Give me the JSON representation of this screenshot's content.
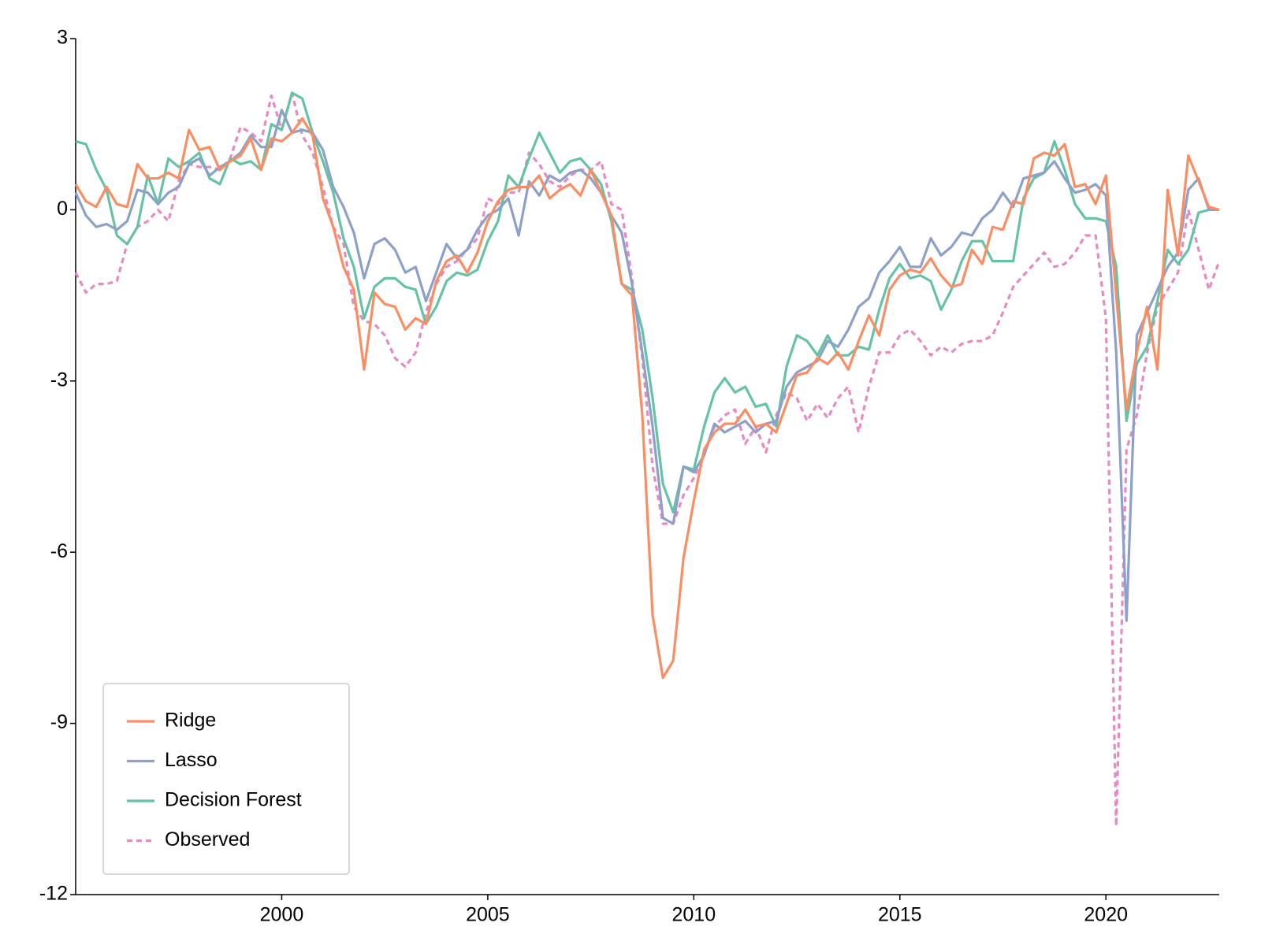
{
  "chart_data": {
    "type": "line",
    "x": [
      1995,
      1995.25,
      1995.5,
      1995.75,
      1996,
      1996.25,
      1996.5,
      1996.75,
      1997,
      1997.25,
      1997.5,
      1997.75,
      1998,
      1998.25,
      1998.5,
      1998.75,
      1999,
      1999.25,
      1999.5,
      1999.75,
      2000,
      2000.25,
      2000.5,
      2000.75,
      2001,
      2001.25,
      2001.5,
      2001.75,
      2002,
      2002.25,
      2002.5,
      2002.75,
      2003,
      2003.25,
      2003.5,
      2003.75,
      2004,
      2004.25,
      2004.5,
      2004.75,
      2005,
      2005.25,
      2005.5,
      2005.75,
      2006,
      2006.25,
      2006.5,
      2006.75,
      2007,
      2007.25,
      2007.5,
      2007.75,
      2008,
      2008.25,
      2008.5,
      2008.75,
      2009,
      2009.25,
      2009.5,
      2009.75,
      2010,
      2010.25,
      2010.5,
      2010.75,
      2011,
      2011.25,
      2011.5,
      2011.75,
      2012,
      2012.25,
      2012.5,
      2012.75,
      2013,
      2013.25,
      2013.5,
      2013.75,
      2014,
      2014.25,
      2014.5,
      2014.75,
      2015,
      2015.25,
      2015.5,
      2015.75,
      2016,
      2016.25,
      2016.5,
      2016.75,
      2017,
      2017.25,
      2017.5,
      2017.75,
      2018,
      2018.25,
      2018.5,
      2018.75,
      2019,
      2019.25,
      2019.5,
      2019.75,
      2020,
      2020.25,
      2020.5,
      2020.75,
      2021,
      2021.25,
      2021.5,
      2021.75,
      2022,
      2022.25,
      2022.5,
      2022.75
    ],
    "series": [
      {
        "name": "Ridge",
        "color": "#fc8d62",
        "style": "solid",
        "values": [
          0.45,
          0.15,
          0.05,
          0.4,
          0.1,
          0.05,
          0.8,
          0.55,
          0.55,
          0.65,
          0.55,
          1.4,
          1.05,
          1.1,
          0.7,
          0.85,
          0.95,
          1.25,
          0.7,
          1.25,
          1.2,
          1.35,
          1.6,
          1.3,
          0.2,
          -0.3,
          -1.0,
          -1.4,
          -2.8,
          -1.45,
          -1.65,
          -1.7,
          -2.1,
          -1.9,
          -2.0,
          -1.25,
          -0.9,
          -0.8,
          -1.1,
          -0.75,
          -0.2,
          0.15,
          0.35,
          0.4,
          0.4,
          0.6,
          0.2,
          0.35,
          0.45,
          0.25,
          0.7,
          0.3,
          -0.1,
          -1.3,
          -1.5,
          -3.6,
          -7.1,
          -8.2,
          -7.9,
          -6.1,
          -5.1,
          -4.2,
          -3.9,
          -3.75,
          -3.75,
          -3.5,
          -3.8,
          -3.75,
          -3.9,
          -3.4,
          -2.9,
          -2.85,
          -2.6,
          -2.7,
          -2.5,
          -2.8,
          -2.3,
          -1.85,
          -2.2,
          -1.4,
          -1.15,
          -1.05,
          -1.1,
          -0.85,
          -1.15,
          -1.35,
          -1.3,
          -0.7,
          -0.95,
          -0.3,
          -0.35,
          0.15,
          0.1,
          0.9,
          1.0,
          0.95,
          1.15,
          0.4,
          0.45,
          0.1,
          0.6,
          -1.5,
          -3.5,
          -2.5,
          -1.7,
          -2.8,
          0.35,
          -0.8,
          0.95,
          0.5,
          0.05,
          0.0
        ]
      },
      {
        "name": "Lasso",
        "color": "#8da0cb",
        "style": "solid",
        "values": [
          0.3,
          -0.1,
          -0.3,
          -0.25,
          -0.35,
          -0.2,
          0.35,
          0.3,
          0.1,
          0.3,
          0.4,
          0.8,
          0.9,
          0.6,
          0.75,
          0.85,
          1.0,
          1.3,
          1.1,
          1.1,
          1.75,
          1.35,
          1.4,
          1.35,
          1.05,
          0.4,
          0.05,
          -0.4,
          -1.2,
          -0.6,
          -0.5,
          -0.7,
          -1.1,
          -1.0,
          -1.6,
          -1.1,
          -0.6,
          -0.85,
          -0.7,
          -0.35,
          -0.1,
          0.0,
          0.2,
          -0.45,
          0.5,
          0.25,
          0.6,
          0.5,
          0.65,
          0.7,
          0.55,
          0.3,
          -0.1,
          -0.4,
          -1.3,
          -2.5,
          -3.8,
          -5.4,
          -5.5,
          -4.5,
          -4.6,
          -4.3,
          -3.75,
          -3.9,
          -3.8,
          -3.7,
          -3.9,
          -3.75,
          -3.7,
          -3.1,
          -2.85,
          -2.75,
          -2.65,
          -2.3,
          -2.4,
          -2.1,
          -1.7,
          -1.55,
          -1.1,
          -0.9,
          -0.65,
          -1.0,
          -1.0,
          -0.5,
          -0.8,
          -0.65,
          -0.4,
          -0.45,
          -0.15,
          0.0,
          0.3,
          0.05,
          0.55,
          0.6,
          0.65,
          0.85,
          0.55,
          0.3,
          0.35,
          0.45,
          0.25,
          -2.5,
          -7.2,
          -2.2,
          -1.8,
          -1.4,
          -1.0,
          -0.75,
          0.35,
          0.55,
          0.0,
          0.0
        ]
      },
      {
        "name": "Decision Forest",
        "color": "#66c2a5",
        "style": "solid",
        "values": [
          1.2,
          1.15,
          0.7,
          0.35,
          -0.45,
          -0.6,
          -0.3,
          0.6,
          0.1,
          0.9,
          0.75,
          0.85,
          1.0,
          0.55,
          0.45,
          0.9,
          0.8,
          0.85,
          0.7,
          1.5,
          1.4,
          2.05,
          1.95,
          1.35,
          0.85,
          0.3,
          -0.5,
          -1.0,
          -1.9,
          -1.35,
          -1.2,
          -1.2,
          -1.35,
          -1.4,
          -2.0,
          -1.7,
          -1.25,
          -1.1,
          -1.15,
          -1.05,
          -0.55,
          -0.2,
          0.6,
          0.4,
          0.9,
          1.35,
          1.0,
          0.65,
          0.85,
          0.9,
          0.7,
          0.45,
          -0.2,
          -1.3,
          -1.4,
          -2.1,
          -3.3,
          -4.8,
          -5.3,
          -4.5,
          -4.55,
          -3.8,
          -3.2,
          -2.95,
          -3.2,
          -3.1,
          -3.45,
          -3.4,
          -3.8,
          -2.75,
          -2.2,
          -2.3,
          -2.55,
          -2.2,
          -2.55,
          -2.55,
          -2.4,
          -2.45,
          -1.75,
          -1.2,
          -0.95,
          -1.2,
          -1.15,
          -1.25,
          -1.75,
          -1.4,
          -0.9,
          -0.55,
          -0.55,
          -0.9,
          -0.9,
          -0.9,
          0.2,
          0.55,
          0.65,
          1.2,
          0.7,
          0.1,
          -0.15,
          -0.15,
          -0.2,
          -1.0,
          -3.7,
          -2.7,
          -2.4,
          -1.6,
          -0.7,
          -0.95,
          -0.7,
          -0.05,
          0.0,
          0.0
        ]
      },
      {
        "name": "Observed",
        "color": "#e78ac3",
        "style": "dashed",
        "values": [
          -1.1,
          -1.45,
          -1.3,
          -1.3,
          -1.25,
          -0.6,
          -0.3,
          -0.2,
          0,
          -0.2,
          0.5,
          0.8,
          0.75,
          0.75,
          0.7,
          0.9,
          1.45,
          1.35,
          1.2,
          2.0,
          1.4,
          2.05,
          1.3,
          1.0,
          0.4,
          -0.3,
          -0.6,
          -1.7,
          -1.95,
          -2.0,
          -2.2,
          -2.6,
          -2.75,
          -2.5,
          -1.8,
          -1.3,
          -1.0,
          -0.9,
          -0.7,
          -0.5,
          0.2,
          0.1,
          0.3,
          0.3,
          1.0,
          0.8,
          0.5,
          0.4,
          0.6,
          0.7,
          0.7,
          0.85,
          0.1,
          0.0,
          -1.2,
          -2.6,
          -4.5,
          -5.5,
          -5.5,
          -5.0,
          -4.7,
          -4.3,
          -3.8,
          -3.6,
          -3.5,
          -4.1,
          -3.8,
          -4.25,
          -3.6,
          -3.2,
          -3.3,
          -3.7,
          -3.4,
          -3.65,
          -3.3,
          -3.1,
          -3.9,
          -3.1,
          -2.5,
          -2.5,
          -2.2,
          -2.1,
          -2.3,
          -2.55,
          -2.4,
          -2.5,
          -2.35,
          -2.3,
          -2.3,
          -2.2,
          -1.8,
          -1.35,
          -1.15,
          -0.95,
          -0.75,
          -1.0,
          -0.95,
          -0.75,
          -0.45,
          -0.45,
          -1.9,
          -10.8,
          -4.2,
          -3.6,
          -2.5,
          -1.7,
          -1.4,
          -1.1,
          0.0,
          -0.7,
          -1.4,
          -0.9
        ]
      }
    ],
    "xlim": [
      1995,
      2022.75
    ],
    "xticks": [
      2000,
      2005,
      2010,
      2015,
      2020
    ],
    "ylim": [
      -12,
      3
    ],
    "yticks": [
      3,
      0,
      -3,
      -6,
      -9,
      -12
    ],
    "grid": false,
    "legend": "lower left"
  }
}
